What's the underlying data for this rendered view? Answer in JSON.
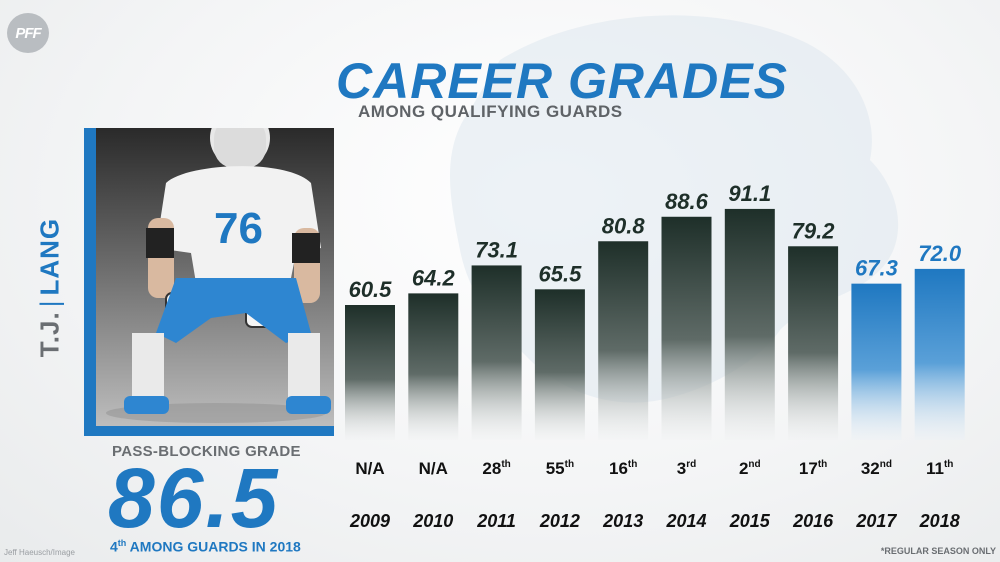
{
  "brand": {
    "logo_text": "PFF"
  },
  "header": {
    "title": "CAREER GRADES",
    "subtitle": "AMONG QUALIFYING GUARDS"
  },
  "player": {
    "first_name": "T.J.",
    "separator": "|",
    "last_name": "LANG",
    "jersey": "76"
  },
  "pass_block": {
    "label": "PASS-BLOCKING GRADE",
    "value": "86.5",
    "rank_text": "4th AMONG GUARDS IN 2018"
  },
  "credit": "Jeff Haeusch/Image",
  "footnote": "*REGULAR SEASON ONLY",
  "colors": {
    "dark_bar": "#1e2f29",
    "blue_bar": "#1f78c1",
    "accent": "#1f78c1"
  },
  "chart_data": {
    "type": "bar",
    "title": "CAREER GRADES",
    "subtitle": "AMONG QUALIFYING GUARDS",
    "categories": [
      "2009",
      "2010",
      "2011",
      "2012",
      "2013",
      "2014",
      "2015",
      "2016",
      "2017",
      "2018"
    ],
    "values": [
      60.5,
      64.2,
      73.1,
      65.5,
      80.8,
      88.6,
      91.1,
      79.2,
      67.3,
      72.0
    ],
    "value_labels": [
      "60.5",
      "64.2",
      "73.1",
      "65.5",
      "80.8",
      "88.6",
      "91.1",
      "79.2",
      "67.3",
      "72.0"
    ],
    "ranks": [
      {
        "num": "N/A",
        "suffix": ""
      },
      {
        "num": "N/A",
        "suffix": ""
      },
      {
        "num": "28",
        "suffix": "th"
      },
      {
        "num": "55",
        "suffix": "th"
      },
      {
        "num": "16",
        "suffix": "th"
      },
      {
        "num": "3",
        "suffix": "rd"
      },
      {
        "num": "2",
        "suffix": "nd"
      },
      {
        "num": "17",
        "suffix": "th"
      },
      {
        "num": "32",
        "suffix": "nd"
      },
      {
        "num": "11",
        "suffix": "th"
      }
    ],
    "highlight_years": [
      "2017",
      "2018"
    ],
    "xlabel": "",
    "ylabel": "",
    "grid": false
  }
}
